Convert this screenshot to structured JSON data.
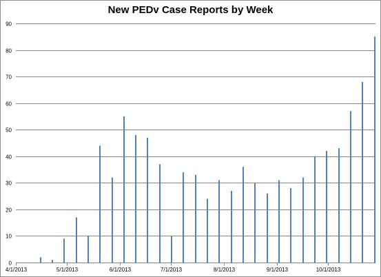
{
  "chart_data": {
    "type": "bar",
    "title": "New PEDv Case Reports by Week",
    "xlabel": "",
    "ylabel": "",
    "ylim": [
      0,
      90
    ],
    "yticks": [
      0,
      10,
      20,
      30,
      40,
      50,
      60,
      70,
      80,
      90
    ],
    "xlim": [
      "2013-04-01",
      "2013-10-29"
    ],
    "xtick_labels": [
      "4/1/2013",
      "5/1/2013",
      "6/1/2013",
      "7/1/2013",
      "8/1/2013",
      "9/1/2013",
      "10/1/2013"
    ],
    "xtick_dates": [
      "2013-04-01",
      "2013-05-01",
      "2013-06-01",
      "2013-07-01",
      "2013-08-01",
      "2013-09-01",
      "2013-10-01"
    ],
    "grid": "horizontal",
    "bar_color": "#4f81bd",
    "points": [
      {
        "date": "2013-04-15",
        "value": 2
      },
      {
        "date": "2013-04-22",
        "value": 1
      },
      {
        "date": "2013-04-29",
        "value": 9
      },
      {
        "date": "2013-05-06",
        "value": 17
      },
      {
        "date": "2013-05-13",
        "value": 10
      },
      {
        "date": "2013-05-20",
        "value": 44
      },
      {
        "date": "2013-05-27",
        "value": 32
      },
      {
        "date": "2013-06-03",
        "value": 55
      },
      {
        "date": "2013-06-10",
        "value": 48
      },
      {
        "date": "2013-06-17",
        "value": 47
      },
      {
        "date": "2013-06-24",
        "value": 37
      },
      {
        "date": "2013-07-01",
        "value": 10
      },
      {
        "date": "2013-07-08",
        "value": 34
      },
      {
        "date": "2013-07-15",
        "value": 33
      },
      {
        "date": "2013-07-22",
        "value": 24
      },
      {
        "date": "2013-07-29",
        "value": 31
      },
      {
        "date": "2013-08-05",
        "value": 27
      },
      {
        "date": "2013-08-12",
        "value": 36
      },
      {
        "date": "2013-08-19",
        "value": 30
      },
      {
        "date": "2013-08-26",
        "value": 26
      },
      {
        "date": "2013-09-02",
        "value": 31
      },
      {
        "date": "2013-09-09",
        "value": 28
      },
      {
        "date": "2013-09-16",
        "value": 32
      },
      {
        "date": "2013-09-23",
        "value": 40
      },
      {
        "date": "2013-09-30",
        "value": 42
      },
      {
        "date": "2013-10-07",
        "value": 43
      },
      {
        "date": "2013-10-14",
        "value": 57
      },
      {
        "date": "2013-10-21",
        "value": 68
      },
      {
        "date": "2013-10-28",
        "value": 85
      }
    ]
  }
}
